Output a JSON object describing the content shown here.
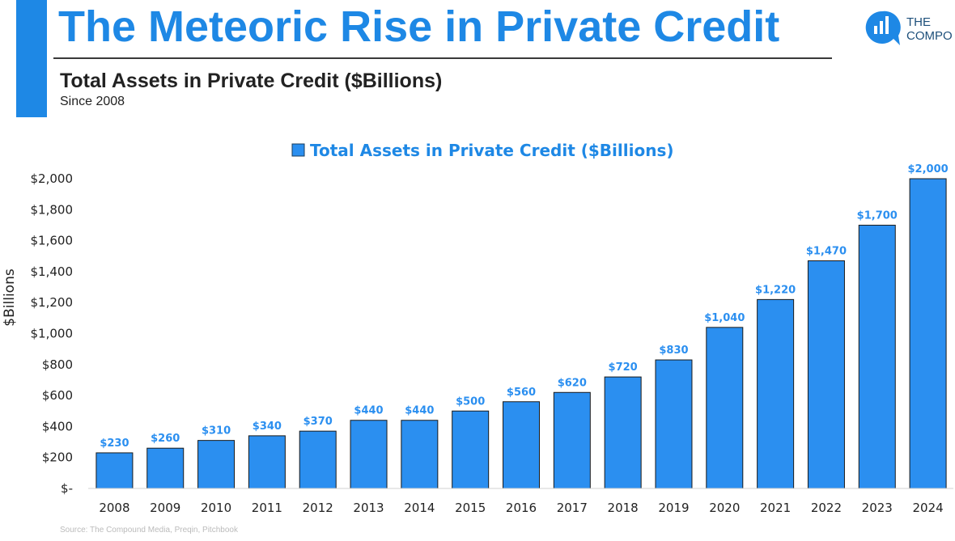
{
  "header": {
    "title": "The Meteoric Rise in Private Credit",
    "subtitle": "Total Assets in Private Credit ($Billions)",
    "since": "Since 2008"
  },
  "logo": {
    "text": "THE\nCOMPO"
  },
  "source": "Source: The Compound Media, Preqin, Pitchbook",
  "colors": {
    "accent": "#1e88e5",
    "bar": "#2b8ff0",
    "label": "#2b8ff0"
  },
  "chart_data": {
    "type": "bar",
    "title": "",
    "legend": "Total Assets in Private Credit ($Billions)",
    "legend_position": "top-center",
    "ylabel": "$Billions",
    "xlabel": "",
    "ylim": [
      0,
      2000
    ],
    "yticks": [
      0,
      200,
      400,
      600,
      800,
      1000,
      1200,
      1400,
      1600,
      1800,
      2000
    ],
    "ytick_labels": [
      "$-",
      "$200",
      "$400",
      "$600",
      "$800",
      "$1,000",
      "$1,200",
      "$1,400",
      "$1,600",
      "$1,800",
      "$2,000"
    ],
    "categories": [
      "2008",
      "2009",
      "2010",
      "2011",
      "2012",
      "2013",
      "2014",
      "2015",
      "2016",
      "2017",
      "2018",
      "2019",
      "2020",
      "2021",
      "2022",
      "2023",
      "2024"
    ],
    "values": [
      230,
      260,
      310,
      340,
      370,
      440,
      440,
      500,
      560,
      620,
      720,
      830,
      1040,
      1220,
      1470,
      1700,
      2000
    ],
    "data_labels": [
      "$230",
      "$260",
      "$310",
      "$340",
      "$370",
      "$440",
      "$440",
      "$500",
      "$560",
      "$620",
      "$720",
      "$830",
      "$1,040",
      "$1,220",
      "$1,470",
      "$1,700",
      "$2,000"
    ],
    "grid": false
  }
}
